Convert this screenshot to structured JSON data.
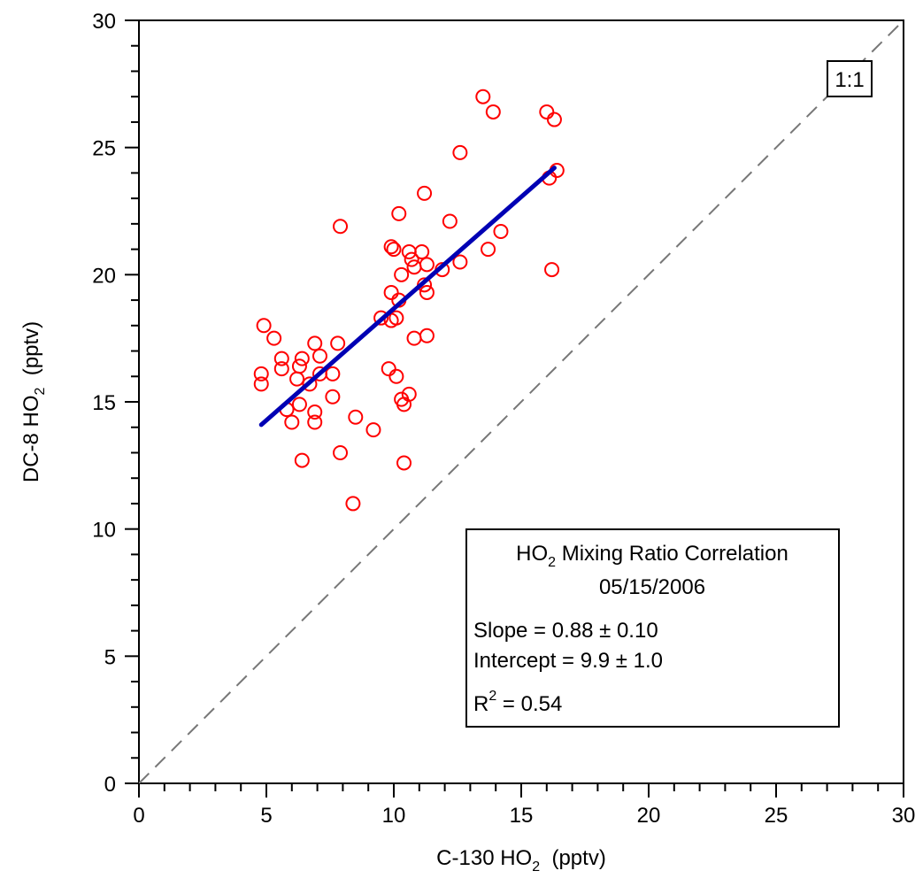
{
  "chart_data": {
    "type": "scatter",
    "title": "",
    "xlabel": {
      "main": "C-130 HO",
      "sub": "2",
      "unit": "(pptv)"
    },
    "ylabel": {
      "main": "DC-8 HO",
      "sub": "2",
      "unit": "(pptv)"
    },
    "xlim": [
      0,
      30
    ],
    "ylim": [
      0,
      30
    ],
    "xticks": [
      0,
      5,
      10,
      15,
      20,
      25,
      30
    ],
    "yticks": [
      0,
      5,
      10,
      15,
      20,
      25,
      30
    ],
    "grid": false,
    "reference_line": {
      "label": "1:1",
      "from": [
        0,
        0
      ],
      "to": [
        30,
        30
      ]
    },
    "fit_line": {
      "from": [
        4.8,
        14.1
      ],
      "to": [
        16.3,
        24.2
      ],
      "color": "#0000b4"
    },
    "marker_color": "#ff0000",
    "points": [
      [
        4.8,
        16.1
      ],
      [
        4.8,
        15.7
      ],
      [
        4.9,
        18.0
      ],
      [
        5.3,
        17.5
      ],
      [
        5.6,
        16.7
      ],
      [
        5.6,
        16.3
      ],
      [
        5.8,
        14.7
      ],
      [
        6.0,
        14.2
      ],
      [
        6.2,
        15.9
      ],
      [
        6.3,
        16.4
      ],
      [
        6.3,
        14.9
      ],
      [
        6.4,
        16.7
      ],
      [
        6.4,
        12.7
      ],
      [
        6.7,
        15.7
      ],
      [
        6.9,
        14.6
      ],
      [
        6.9,
        14.2
      ],
      [
        6.9,
        17.3
      ],
      [
        7.1,
        16.1
      ],
      [
        7.1,
        16.8
      ],
      [
        7.6,
        15.2
      ],
      [
        7.6,
        16.1
      ],
      [
        7.8,
        17.3
      ],
      [
        7.9,
        13.0
      ],
      [
        7.9,
        21.9
      ],
      [
        8.4,
        11.0
      ],
      [
        8.5,
        14.4
      ],
      [
        9.2,
        13.9
      ],
      [
        9.5,
        18.3
      ],
      [
        9.8,
        16.3
      ],
      [
        9.9,
        19.3
      ],
      [
        9.9,
        18.2
      ],
      [
        9.9,
        21.1
      ],
      [
        10.0,
        21.0
      ],
      [
        10.1,
        16.0
      ],
      [
        10.1,
        18.3
      ],
      [
        10.2,
        19.0
      ],
      [
        10.2,
        22.4
      ],
      [
        10.3,
        15.1
      ],
      [
        10.3,
        20.0
      ],
      [
        10.4,
        12.6
      ],
      [
        10.4,
        14.9
      ],
      [
        10.6,
        20.9
      ],
      [
        10.6,
        15.3
      ],
      [
        10.7,
        20.6
      ],
      [
        10.8,
        17.5
      ],
      [
        10.8,
        20.3
      ],
      [
        11.1,
        20.9
      ],
      [
        11.2,
        19.6
      ],
      [
        11.2,
        23.2
      ],
      [
        11.3,
        20.4
      ],
      [
        11.3,
        19.3
      ],
      [
        11.3,
        17.6
      ],
      [
        11.9,
        20.2
      ],
      [
        12.2,
        22.1
      ],
      [
        12.6,
        24.8
      ],
      [
        12.6,
        20.5
      ],
      [
        13.5,
        27.0
      ],
      [
        13.7,
        21.0
      ],
      [
        13.9,
        26.4
      ],
      [
        14.2,
        21.7
      ],
      [
        16.0,
        26.4
      ],
      [
        16.1,
        23.8
      ],
      [
        16.2,
        20.2
      ],
      [
        16.3,
        26.1
      ],
      [
        16.4,
        24.1
      ]
    ],
    "stats_box": {
      "title_main": "HO",
      "title_sub": "2",
      "title_rest": " Mixing Ratio Correlation",
      "date": "05/15/2006",
      "slope": "Slope = 0.88 ± 0.10",
      "intercept": "Intercept = 9.9 ± 1.0",
      "r2_main": "R",
      "r2_sup": "2",
      "r2_rest": " = 0.54"
    }
  }
}
